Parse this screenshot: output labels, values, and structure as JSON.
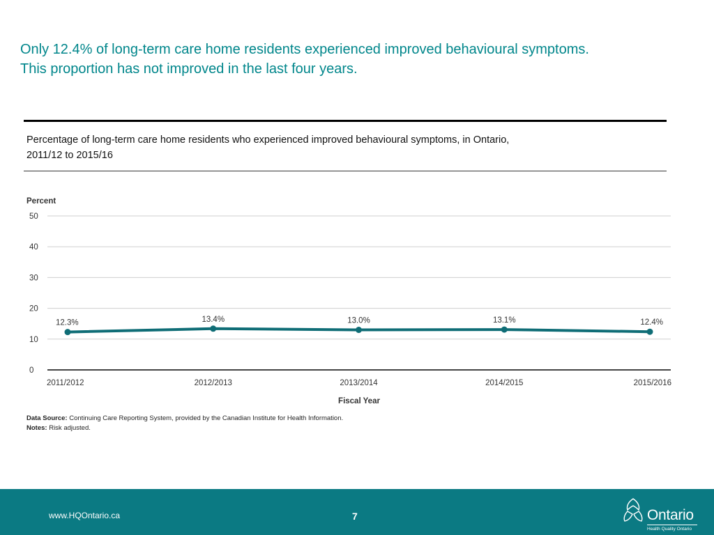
{
  "headline": {
    "line1": "Only 12.4% of long-term care home residents experienced improved behavioural symptoms.",
    "line2": "This proportion has not improved in the last four years."
  },
  "subtitle": {
    "line1": "Percentage of long-term care home residents who experienced improved behavioural symptoms, in Ontario,",
    "line2": "2011/12 to 2015/16"
  },
  "chart_data": {
    "type": "line",
    "categories": [
      "2011/2012",
      "2012/2013",
      "2013/2014",
      "2014/2015",
      "2015/2016"
    ],
    "values": [
      12.3,
      13.4,
      13.0,
      13.1,
      12.4
    ],
    "data_labels": [
      "12.3%",
      "13.4%",
      "13.0%",
      "13.1%",
      "12.4%"
    ],
    "ylabel": "Percent",
    "xlabel": "Fiscal Year",
    "ylim": [
      0,
      50
    ],
    "yticks": [
      0,
      10,
      20,
      30,
      40,
      50
    ],
    "grid": true,
    "line_color": "#0f6d76"
  },
  "notes": {
    "source_label": "Data Source:",
    "source_text": "Continuing Care Reporting System, provided by the Canadian Institute for Health Information.",
    "notes_label": "Notes:",
    "notes_text": "Risk adjusted."
  },
  "footer": {
    "url": "www.HQOntario.ca",
    "page_number": "7",
    "logo_text": "Ontario",
    "logo_subtext": "Health Quality Ontario",
    "background": "#0b7a83"
  }
}
